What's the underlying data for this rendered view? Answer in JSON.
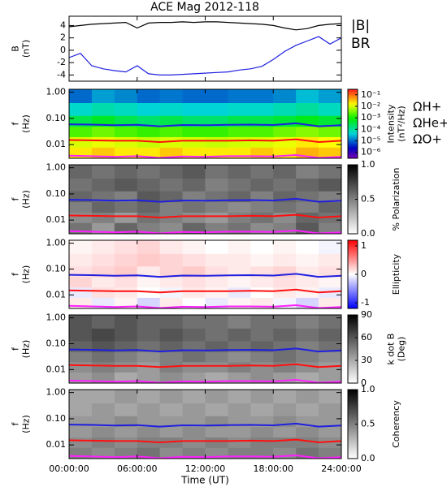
{
  "chart_data": [
    {
      "type": "line",
      "title": "ACE Mag 2012-118",
      "ylabel": [
        "B",
        "(nT)"
      ],
      "xlim": [
        0,
        24
      ],
      "ylim": [
        -5,
        5.5
      ],
      "yticks": [
        -4,
        -2,
        0,
        2,
        4
      ],
      "x": [
        0,
        1,
        2,
        3,
        4,
        5,
        6,
        7,
        8,
        9,
        10,
        11,
        12,
        13,
        14,
        15,
        16,
        17,
        18,
        19,
        20,
        21,
        22,
        23,
        24
      ],
      "series": [
        {
          "name": "|B|",
          "color": "#000000",
          "values": [
            3.8,
            4.0,
            4.2,
            4.3,
            4.4,
            4.5,
            3.6,
            4.4,
            4.5,
            4.5,
            4.6,
            4.5,
            4.6,
            4.6,
            4.5,
            4.4,
            4.3,
            4.2,
            4.0,
            3.6,
            3.3,
            3.5,
            4.0,
            4.2,
            4.3
          ]
        },
        {
          "name": "BR",
          "color": "#1f1fe0",
          "values": [
            -1.2,
            -0.5,
            -2.5,
            -3.0,
            -3.3,
            -3.5,
            -2.5,
            -3.8,
            -4.0,
            -4.0,
            -3.9,
            -3.8,
            -3.7,
            -3.6,
            -3.5,
            -3.2,
            -3.0,
            -2.6,
            -1.5,
            -0.2,
            0.8,
            1.5,
            2.2,
            1.0,
            2.0
          ]
        }
      ]
    },
    {
      "type": "heatmap",
      "ylabel": [
        "f",
        "(Hz)"
      ],
      "colorbar_label": [
        "Intensity",
        "(nT²/Hz)"
      ],
      "colormap": "rainbow",
      "log_color": true,
      "clim": [
        3e-07,
        0.3
      ],
      "cticks": [
        {
          "value": 0.1,
          "label": "10⁻¹"
        },
        {
          "value": 0.01,
          "label": "10⁻²"
        },
        {
          "value": 0.001,
          "label": "10⁻³"
        },
        {
          "value": 0.0001,
          "label": "10⁻⁴"
        },
        {
          "value": 1e-05,
          "label": "10⁻⁵"
        },
        {
          "value": 1e-06,
          "label": "10⁻⁶"
        }
      ],
      "xlim": [
        0,
        24
      ],
      "ylim": [
        0.003,
        1.3
      ],
      "ylog": true,
      "yticks": [
        0.01,
        {
          "value": 0.1,
          "label": "0.10"
        },
        {
          "value": 1,
          "label": "1.00"
        }
      ],
      "x_bins": [
        0,
        2,
        4,
        6,
        8,
        10,
        12,
        14,
        16,
        18,
        20,
        22,
        24
      ],
      "y_bins": [
        0.003,
        0.008,
        0.02,
        0.05,
        0.13,
        0.4,
        1.3
      ],
      "z": [
        [
          0.02,
          0.03,
          0.02,
          0.02,
          0.03,
          0.02,
          0.02,
          0.02,
          0.03,
          0.02,
          0.04,
          0.03
        ],
        [
          0.01,
          0.012,
          0.01,
          0.008,
          0.01,
          0.009,
          0.008,
          0.009,
          0.01,
          0.012,
          0.02,
          0.015
        ],
        [
          0.002,
          0.003,
          0.002,
          0.0015,
          0.002,
          0.0015,
          0.0015,
          0.002,
          0.002,
          0.003,
          0.004,
          0.003
        ],
        [
          0.0003,
          0.0005,
          0.0003,
          0.0002,
          0.0003,
          0.0002,
          0.0002,
          0.0003,
          0.0003,
          0.0004,
          0.0006,
          0.0004
        ],
        [
          5e-05,
          8e-05,
          6e-05,
          4e-05,
          5e-05,
          4e-05,
          4e-05,
          5e-05,
          5e-05,
          7e-05,
          0.0001,
          6e-05
        ],
        [
          1e-05,
          2e-05,
          1.5e-05,
          1e-05,
          1.2e-05,
          1e-05,
          1e-05,
          1.2e-05,
          1.2e-05,
          1.5e-05,
          3e-05,
          2e-05
        ]
      ],
      "x": [
        0,
        2,
        4,
        6,
        8,
        10,
        12,
        14,
        16,
        18,
        20,
        22,
        24
      ],
      "series": [
        {
          "name": "ΩH+",
          "color": "#1f1fe0",
          "values": [
            0.06,
            0.058,
            0.055,
            0.057,
            0.05,
            0.056,
            0.055,
            0.057,
            0.058,
            0.056,
            0.065,
            0.05,
            0.055
          ]
        },
        {
          "name": "ΩHe+",
          "color": "#ff1010",
          "values": [
            0.015,
            0.0145,
            0.014,
            0.014,
            0.0125,
            0.014,
            0.014,
            0.014,
            0.0145,
            0.014,
            0.016,
            0.0125,
            0.014
          ]
        },
        {
          "name": "ΩO+",
          "color": "#ff20ff",
          "values": [
            0.0038,
            0.0036,
            0.0034,
            0.0036,
            0.0031,
            0.0035,
            0.0034,
            0.0036,
            0.0036,
            0.0035,
            0.004,
            0.0031,
            0.0034
          ]
        }
      ]
    },
    {
      "type": "heatmap",
      "ylabel": [
        "f",
        "(Hz)"
      ],
      "colorbar_label": [
        "% Polarization"
      ],
      "colormap": "gray",
      "clim": [
        0,
        1
      ],
      "cticks": [
        {
          "value": 0,
          "label": "0.0"
        },
        0.5,
        {
          "value": 1,
          "label": "1.0"
        }
      ],
      "xlim": [
        0,
        24
      ],
      "ylim": [
        0.003,
        1.3
      ],
      "ylog": true,
      "yticks": [
        0.01,
        {
          "value": 0.1,
          "label": "0.10"
        },
        {
          "value": 1,
          "label": "1.00"
        }
      ],
      "x_bins": [
        0,
        2,
        4,
        6,
        8,
        10,
        12,
        14,
        16,
        18,
        20,
        22,
        24
      ],
      "y_bins": [
        0.003,
        0.008,
        0.02,
        0.05,
        0.13,
        0.4,
        1.3
      ],
      "z": [
        [
          0.55,
          0.4,
          0.6,
          0.5,
          0.45,
          0.6,
          0.5,
          0.55,
          0.45,
          0.5,
          0.65,
          0.5
        ],
        [
          0.45,
          0.5,
          0.4,
          0.55,
          0.5,
          0.45,
          0.4,
          0.5,
          0.55,
          0.45,
          0.6,
          0.55
        ],
        [
          0.5,
          0.6,
          0.55,
          0.6,
          0.5,
          0.55,
          0.5,
          0.45,
          0.5,
          0.55,
          0.5,
          0.6
        ],
        [
          0.6,
          0.55,
          0.5,
          0.65,
          0.6,
          0.5,
          0.55,
          0.6,
          0.5,
          0.6,
          0.55,
          0.5
        ],
        [
          0.55,
          0.6,
          0.65,
          0.6,
          0.55,
          0.6,
          0.5,
          0.55,
          0.6,
          0.55,
          0.6,
          0.65
        ],
        [
          0.6,
          0.55,
          0.6,
          0.55,
          0.6,
          0.65,
          0.55,
          0.6,
          0.55,
          0.6,
          0.5,
          0.55
        ]
      ]
    },
    {
      "type": "heatmap",
      "ylabel": [
        "f",
        "(Hz)"
      ],
      "colorbar_label": [
        "Ellipticity"
      ],
      "colormap": "bwr",
      "clim": [
        -1.2,
        1.2
      ],
      "cticks": [
        -1,
        0,
        1
      ],
      "xlim": [
        0,
        24
      ],
      "ylim": [
        0.003,
        1.3
      ],
      "ylog": true,
      "yticks": [
        0.01,
        {
          "value": 0.1,
          "label": "0.10"
        },
        {
          "value": 1,
          "label": "1.00"
        }
      ],
      "x_bins": [
        0,
        2,
        4,
        6,
        8,
        10,
        12,
        14,
        16,
        18,
        20,
        22,
        24
      ],
      "y_bins": [
        0.003,
        0.008,
        0.02,
        0.05,
        0.13,
        0.4,
        1.3
      ],
      "z": [
        [
          0.1,
          -0.1,
          0.05,
          -0.2,
          0.1,
          0,
          -0.1,
          0.05,
          0.1,
          -0.05,
          -0.2,
          0.1
        ],
        [
          -0.1,
          0.15,
          0.1,
          0,
          -0.05,
          0.1,
          0.05,
          -0.1,
          0,
          0.1,
          0.05,
          -0.1
        ],
        [
          0.2,
          0.1,
          0.15,
          0.05,
          0.1,
          0.15,
          0.1,
          0.05,
          0.1,
          0.15,
          0.1,
          0.05
        ],
        [
          0.15,
          0.2,
          0.25,
          0.1,
          0.2,
          0.25,
          0.15,
          0.1,
          0.15,
          0.2,
          0.1,
          0.15
        ],
        [
          0.1,
          0.15,
          0.2,
          0.25,
          0.2,
          0.15,
          0.1,
          0.1,
          0.05,
          0.1,
          0.05,
          0.1
        ],
        [
          0.05,
          0.1,
          0.15,
          0.2,
          0.1,
          0.05,
          0,
          0.05,
          0,
          0.05,
          0,
          -0.05
        ]
      ]
    },
    {
      "type": "heatmap",
      "ylabel": [
        "f",
        "(Hz)"
      ],
      "colorbar_label": [
        "k dot B",
        "(Deg)"
      ],
      "colormap": "gray",
      "clim": [
        0,
        90
      ],
      "cticks": [
        0,
        30,
        60,
        90
      ],
      "xlim": [
        0,
        24
      ],
      "ylim": [
        0.003,
        1.3
      ],
      "ylog": true,
      "yticks": [
        0.01,
        {
          "value": 0.1,
          "label": "0.10"
        },
        {
          "value": 1,
          "label": "1.00"
        }
      ],
      "x_bins": [
        0,
        2,
        4,
        6,
        8,
        10,
        12,
        14,
        16,
        18,
        20,
        22,
        24
      ],
      "y_bins": [
        0.003,
        0.008,
        0.02,
        0.05,
        0.13,
        0.4,
        1.3
      ],
      "z": [
        [
          35,
          40,
          30,
          35,
          40,
          35,
          30,
          35,
          40,
          35,
          30,
          35
        ],
        [
          40,
          45,
          40,
          35,
          45,
          40,
          40,
          45,
          40,
          45,
          40,
          35
        ],
        [
          45,
          50,
          45,
          40,
          45,
          50,
          45,
          40,
          45,
          50,
          45,
          40
        ],
        [
          55,
          60,
          55,
          50,
          55,
          50,
          55,
          50,
          55,
          50,
          45,
          50
        ],
        [
          60,
          65,
          60,
          55,
          60,
          55,
          50,
          55,
          50,
          55,
          50,
          55
        ],
        [
          60,
          55,
          60,
          55,
          55,
          50,
          50,
          45,
          50,
          50,
          45,
          50
        ]
      ]
    },
    {
      "type": "heatmap",
      "ylabel": [
        "f",
        "(Hz)"
      ],
      "colorbar_label": [
        "Coherency"
      ],
      "colormap": "gray",
      "clim": [
        0,
        1
      ],
      "cticks": [
        {
          "value": 0,
          "label": "0.0"
        },
        0.5,
        {
          "value": 1,
          "label": "1.0"
        }
      ],
      "xlim": [
        0,
        24
      ],
      "ylim": [
        0.003,
        1.3
      ],
      "ylog": true,
      "yticks": [
        0.01,
        {
          "value": 0.1,
          "label": "0.10"
        },
        {
          "value": 1,
          "label": "1.00"
        }
      ],
      "xticks": [
        {
          "value": 0,
          "label": "00:00:00"
        },
        {
          "value": 6,
          "label": "06:00:00"
        },
        {
          "value": 12,
          "label": "12:00:00"
        },
        {
          "value": 18,
          "label": "18:00:00"
        },
        {
          "value": 24,
          "label": "24:00:00"
        }
      ],
      "xlabel": "Time (UT)",
      "x_bins": [
        0,
        2,
        4,
        6,
        8,
        10,
        12,
        14,
        16,
        18,
        20,
        22,
        24
      ],
      "y_bins": [
        0.003,
        0.008,
        0.02,
        0.05,
        0.13,
        0.4,
        1.3
      ],
      "z": [
        [
          0.5,
          0.45,
          0.5,
          0.55,
          0.45,
          0.5,
          0.45,
          0.5,
          0.5,
          0.45,
          0.55,
          0.5
        ],
        [
          0.45,
          0.5,
          0.45,
          0.5,
          0.5,
          0.45,
          0.5,
          0.45,
          0.5,
          0.5,
          0.5,
          0.45
        ],
        [
          0.4,
          0.45,
          0.4,
          0.45,
          0.4,
          0.45,
          0.4,
          0.4,
          0.45,
          0.4,
          0.45,
          0.4
        ],
        [
          0.4,
          0.4,
          0.45,
          0.4,
          0.4,
          0.4,
          0.45,
          0.4,
          0.4,
          0.45,
          0.4,
          0.4
        ],
        [
          0.35,
          0.4,
          0.35,
          0.4,
          0.35,
          0.4,
          0.35,
          0.4,
          0.35,
          0.4,
          0.35,
          0.4
        ],
        [
          0.35,
          0.35,
          0.4,
          0.35,
          0.4,
          0.35,
          0.4,
          0.35,
          0.4,
          0.35,
          0.4,
          0.35
        ]
      ]
    }
  ]
}
